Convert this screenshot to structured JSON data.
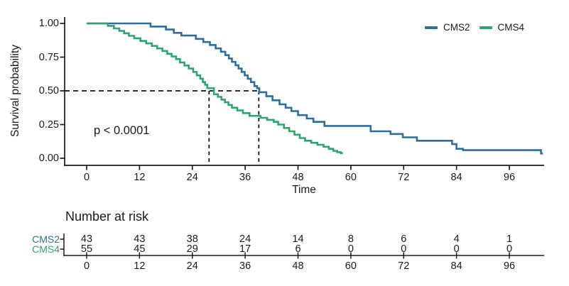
{
  "figure": {
    "background": "#ffffff",
    "text_color": "#1a1a1a"
  },
  "legend": {
    "items": [
      {
        "label": "CMS2",
        "color": "#2d6f9c"
      },
      {
        "label": "CMS4",
        "color": "#2fa471"
      }
    ]
  },
  "plot": {
    "ylabel": "Survival probability",
    "xlabel": "Time",
    "p_value_label": "p < 0.0001",
    "ytick_labels": [
      "1.00",
      "0.75",
      "0.50",
      "0.25",
      "0.00"
    ],
    "xtick_labels": [
      "0",
      "12",
      "24",
      "36",
      "48",
      "60",
      "72",
      "84",
      "96"
    ]
  },
  "risk_table": {
    "title": "Number at risk",
    "xtick_labels": [
      "0",
      "12",
      "24",
      "36",
      "48",
      "60",
      "72",
      "84",
      "96"
    ],
    "rows": [
      {
        "label": "CMS2",
        "color": "#2d6f9c",
        "values": [
          "43",
          "43",
          "38",
          "24",
          "14",
          "8",
          "6",
          "4",
          "1"
        ]
      },
      {
        "label": "CMS4",
        "color": "#2fa471",
        "values": [
          "55",
          "45",
          "29",
          "17",
          "6",
          "0",
          "0",
          "0",
          "0"
        ]
      }
    ]
  },
  "chart_data": {
    "type": "line",
    "subtype": "kaplan-meier-step",
    "title": "",
    "xlabel": "Time",
    "ylabel": "Survival probability",
    "xlim": [
      0,
      104
    ],
    "ylim": [
      0,
      1
    ],
    "xticks": [
      0,
      12,
      24,
      36,
      48,
      60,
      72,
      84,
      96
    ],
    "yticks": [
      1.0,
      0.75,
      0.5,
      0.25,
      0.0
    ],
    "grid": false,
    "legend_position": "top-right",
    "p_value": "p < 0.0001",
    "median_guides": {
      "probability": 0.5,
      "times": [
        27.8,
        39.1
      ]
    },
    "series": [
      {
        "name": "CMS2",
        "color": "#2d6f9c",
        "n_at_risk": [
          43,
          43,
          38,
          24,
          14,
          8,
          6,
          4,
          1
        ],
        "median_time": 39.1,
        "points": [
          [
            0,
            1.0
          ],
          [
            14.5,
            0.977
          ],
          [
            18,
            0.955
          ],
          [
            19.8,
            0.93
          ],
          [
            21.5,
            0.91
          ],
          [
            24.8,
            0.885
          ],
          [
            26.5,
            0.862
          ],
          [
            28,
            0.84
          ],
          [
            29.3,
            0.815
          ],
          [
            30.5,
            0.79
          ],
          [
            31.5,
            0.765
          ],
          [
            32.3,
            0.74
          ],
          [
            33,
            0.715
          ],
          [
            33.8,
            0.69
          ],
          [
            34.5,
            0.665
          ],
          [
            35.2,
            0.64
          ],
          [
            35.9,
            0.615
          ],
          [
            36.6,
            0.59
          ],
          [
            37.3,
            0.565
          ],
          [
            38.1,
            0.535
          ],
          [
            38.7,
            0.52
          ],
          [
            39.2,
            0.49
          ],
          [
            40.8,
            0.46
          ],
          [
            42.2,
            0.43
          ],
          [
            43.8,
            0.4
          ],
          [
            45.2,
            0.375
          ],
          [
            46.5,
            0.35
          ],
          [
            48,
            0.32
          ],
          [
            50,
            0.295
          ],
          [
            51.5,
            0.27
          ],
          [
            54,
            0.24
          ],
          [
            64.5,
            0.2
          ],
          [
            69,
            0.18
          ],
          [
            71.8,
            0.155
          ],
          [
            75,
            0.13
          ],
          [
            83,
            0.105
          ],
          [
            84,
            0.07
          ],
          [
            85.5,
            0.06
          ],
          [
            103.2,
            0.035
          ],
          [
            103.6,
            0.035
          ]
        ]
      },
      {
        "name": "CMS4",
        "color": "#2fa471",
        "n_at_risk": [
          55,
          45,
          29,
          17,
          6,
          0,
          0,
          0,
          0
        ],
        "median_time": 27.8,
        "points": [
          [
            0,
            1.0
          ],
          [
            4.8,
            0.982
          ],
          [
            6.2,
            0.963
          ],
          [
            7.4,
            0.945
          ],
          [
            8.5,
            0.927
          ],
          [
            9.6,
            0.908
          ],
          [
            10.8,
            0.89
          ],
          [
            12.2,
            0.87
          ],
          [
            13.5,
            0.852
          ],
          [
            14.8,
            0.833
          ],
          [
            16,
            0.815
          ],
          [
            17.2,
            0.796
          ],
          [
            18.3,
            0.775
          ],
          [
            19.3,
            0.755
          ],
          [
            20.3,
            0.735
          ],
          [
            21.2,
            0.71
          ],
          [
            22.2,
            0.688
          ],
          [
            23.2,
            0.665
          ],
          [
            24.2,
            0.64
          ],
          [
            25,
            0.615
          ],
          [
            25.8,
            0.59
          ],
          [
            26.4,
            0.565
          ],
          [
            26.9,
            0.545
          ],
          [
            27.4,
            0.52
          ],
          [
            28.9,
            0.475
          ],
          [
            29.8,
            0.455
          ],
          [
            30.6,
            0.435
          ],
          [
            31.4,
            0.415
          ],
          [
            32.2,
            0.395
          ],
          [
            33,
            0.375
          ],
          [
            34.2,
            0.355
          ],
          [
            35.5,
            0.335
          ],
          [
            37,
            0.315
          ],
          [
            39.5,
            0.3
          ],
          [
            41,
            0.285
          ],
          [
            42.5,
            0.27
          ],
          [
            43.5,
            0.25
          ],
          [
            44.8,
            0.225
          ],
          [
            46,
            0.2
          ],
          [
            47.2,
            0.175
          ],
          [
            48.4,
            0.15
          ],
          [
            49.6,
            0.13
          ],
          [
            51,
            0.115
          ],
          [
            52.4,
            0.1
          ],
          [
            53.8,
            0.085
          ],
          [
            55,
            0.07
          ],
          [
            56,
            0.055
          ],
          [
            56.9,
            0.045
          ],
          [
            57.7,
            0.038
          ],
          [
            58.2,
            0.038
          ]
        ]
      }
    ]
  }
}
